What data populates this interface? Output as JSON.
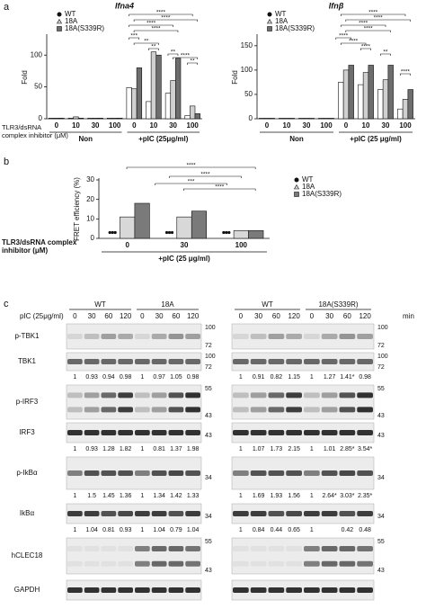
{
  "figure": {
    "panel_labels": [
      "a",
      "b",
      "c"
    ],
    "inhibitor_label": [
      "TLR3/dsRNA",
      "complex inhibitor (μM)"
    ]
  },
  "chart_data": [
    {
      "type": "bar",
      "title": "Ifna4",
      "ylabel": "Fold",
      "ylim": [
        0,
        130
      ],
      "yticks": [
        0,
        50,
        100
      ],
      "groups": [
        {
          "label": "Non",
          "categories": [
            "0",
            "10",
            "30",
            "100"
          ]
        },
        {
          "label": "+pIC (25μg/ml)",
          "categories": [
            "0",
            "10",
            "30",
            "100"
          ]
        }
      ],
      "series": [
        {
          "name": "WT",
          "color": "#ffffff",
          "marker": "circle",
          "values": [
            1,
            1,
            1,
            1,
            49,
            27,
            40,
            5
          ]
        },
        {
          "name": "18A",
          "color": "#d0d0d0",
          "marker": "triangle",
          "values": [
            1,
            3,
            1,
            1,
            47,
            105,
            60,
            20
          ]
        },
        {
          "name": "18A(S339R)",
          "color": "#6e6e6e",
          "marker": "square",
          "values": [
            1,
            1,
            1,
            1,
            80,
            100,
            95,
            8
          ]
        }
      ],
      "annotations": [
        "****",
        "****",
        "****",
        "****",
        "***",
        "**",
        "**",
        "**",
        "****",
        "**"
      ]
    },
    {
      "type": "bar",
      "title": "Ifnβ",
      "ylabel": "Fold",
      "ylim": [
        0,
        170
      ],
      "yticks": [
        0,
        50,
        100,
        150
      ],
      "groups": [
        {
          "label": "Non",
          "categories": [
            "0",
            "10",
            "30",
            "100"
          ]
        },
        {
          "label": "+pIC (25 μg/ml)",
          "categories": [
            "0",
            "10",
            "30",
            "100"
          ]
        }
      ],
      "series": [
        {
          "name": "WT",
          "color": "#ffffff",
          "marker": "circle",
          "values": [
            1,
            1,
            1,
            1,
            75,
            70,
            60,
            20
          ]
        },
        {
          "name": "18A",
          "color": "#d0d0d0",
          "marker": "triangle",
          "values": [
            1,
            1,
            1,
            1,
            100,
            95,
            80,
            40
          ]
        },
        {
          "name": "18A(S339R)",
          "color": "#6e6e6e",
          "marker": "square",
          "values": [
            1,
            1,
            1,
            1,
            110,
            110,
            110,
            60
          ]
        }
      ],
      "annotations": [
        "****",
        "****",
        "****",
        "****",
        "****",
        "****",
        "****",
        "**",
        "****"
      ]
    },
    {
      "type": "bar",
      "ylabel": "FRET efficiency (%)",
      "xlabel": [
        "TLR3/dsRNA complex",
        "inhibitor (μM)"
      ],
      "ylim": [
        0,
        30
      ],
      "yticks": [
        0,
        10,
        20,
        30
      ],
      "groups": [
        {
          "label": "+pIC (25 μg/ml)",
          "categories": [
            "0",
            "30",
            "100"
          ]
        }
      ],
      "series": [
        {
          "name": "WT",
          "color": "#111111",
          "marker": "circle",
          "kind": "points",
          "values": [
            3,
            3,
            3
          ]
        },
        {
          "name": "18A",
          "color": "#d8d8d8",
          "marker": "triangle",
          "values": [
            11,
            11,
            4
          ]
        },
        {
          "name": "18A(S339R)",
          "color": "#7a7a7a",
          "marker": "square",
          "values": [
            18,
            14,
            4
          ]
        }
      ],
      "annotations": [
        "****",
        "****",
        "***",
        "****"
      ]
    }
  ],
  "blot": {
    "header": "pIC (25μg/ml)",
    "time_unit": "min",
    "panels": [
      {
        "groups": [
          "WT",
          "18A"
        ],
        "times": [
          "0",
          "30",
          "60",
          "120"
        ]
      },
      {
        "groups": [
          "WT",
          "18A(S339R)"
        ],
        "times": [
          "0",
          "30",
          "60",
          "120"
        ]
      }
    ],
    "rows": [
      {
        "name": "p-TBK1",
        "markers": [
          "100",
          "72"
        ]
      },
      {
        "name": "TBK1",
        "markers": [
          "100",
          "72"
        ],
        "quant": [
          [
            "1",
            "0.93",
            "0.94",
            "0.98",
            "1",
            "0.97",
            "1.05",
            "0.98"
          ],
          [
            "1",
            "0.91",
            "0.82",
            "1.15",
            "1",
            "1.27",
            "1.41*",
            "0.98"
          ]
        ]
      },
      {
        "name": "p-IRF3",
        "markers": [
          "55",
          "43"
        ]
      },
      {
        "name": "IRF3",
        "markers": [
          "43"
        ],
        "quant": [
          [
            "1",
            "0.93",
            "1.28",
            "1.82",
            "1",
            "0.81",
            "1.37",
            "1.98"
          ],
          [
            "1",
            "1.07",
            "1.73",
            "2.15",
            "1",
            "1.01",
            "2.85*",
            "3.54*"
          ]
        ]
      },
      {
        "name": "p-IkBα",
        "markers": [
          "34"
        ],
        "quant": [
          [
            "1",
            "1.5",
            "1.45",
            "1.36",
            "1",
            "1.34",
            "1.42",
            "1.33"
          ],
          [
            "1",
            "1.69",
            "1.93",
            "1.56",
            "1",
            "2.64*",
            "3.03*",
            "2.35*"
          ]
        ]
      },
      {
        "name": "IkBα",
        "markers": [
          "34"
        ],
        "quant": [
          [
            "1",
            "1.04",
            "0.81",
            "0.93",
            "1",
            "1.04",
            "0.79",
            "1.04"
          ],
          [
            "1",
            "0.84",
            "0.44",
            "0.65",
            "1",
            null,
            "0.42",
            "0.48"
          ]
        ]
      },
      {
        "name": "hCLEC18",
        "markers": [
          "55",
          "43"
        ]
      },
      {
        "name": "GAPDH",
        "markers": []
      }
    ]
  }
}
